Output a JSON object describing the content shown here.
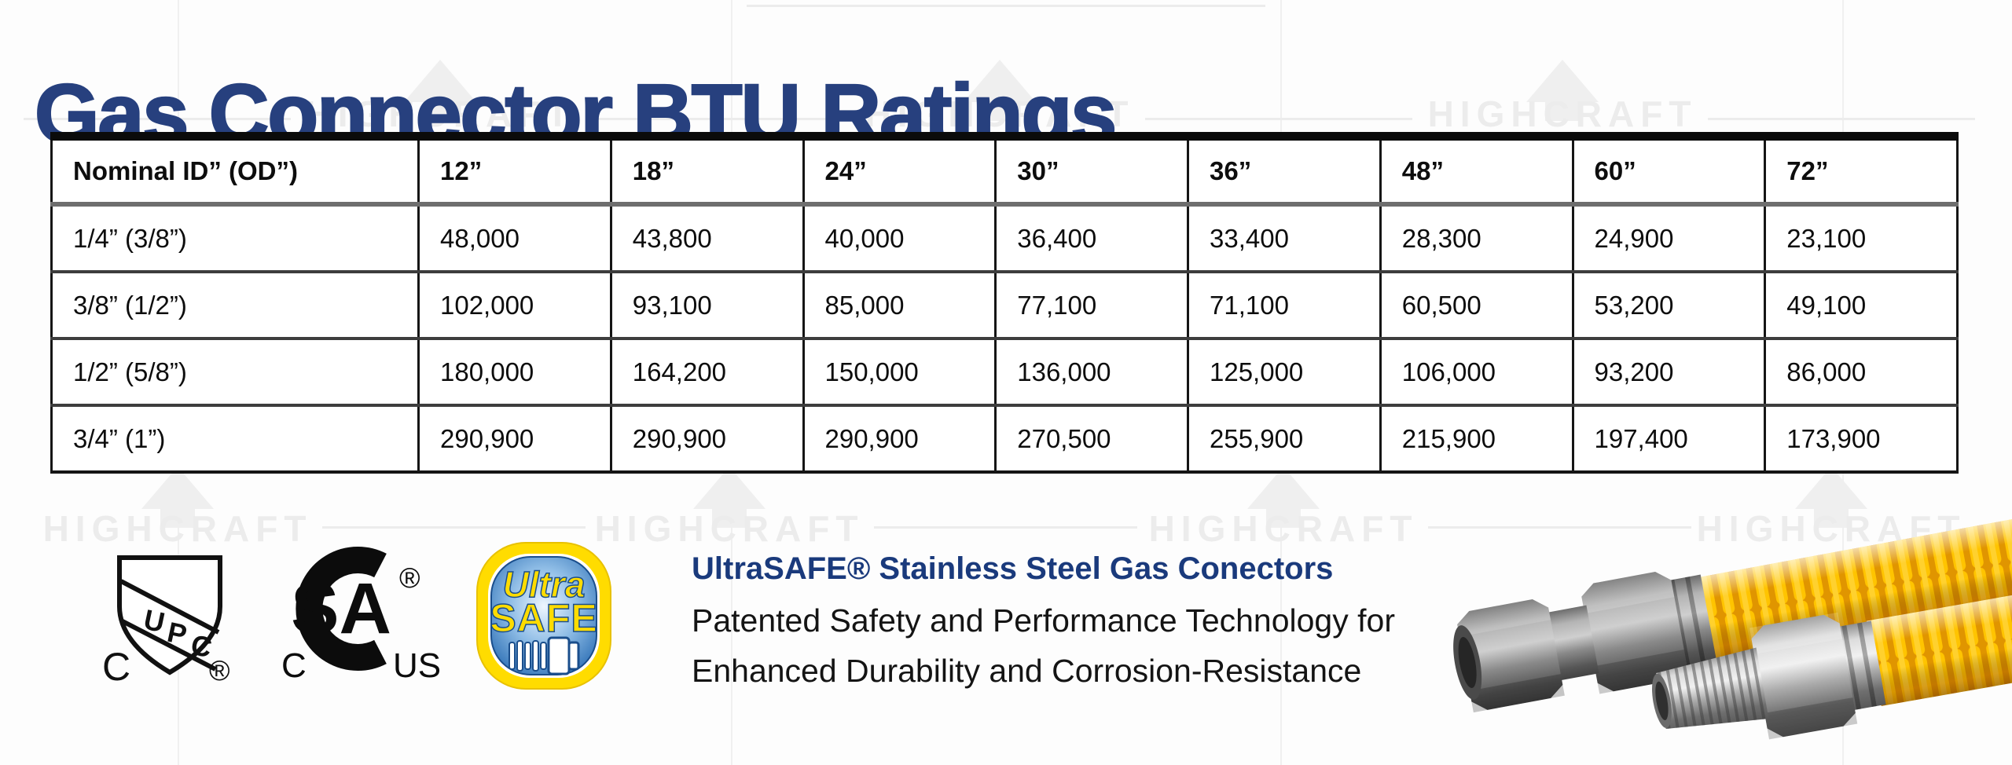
{
  "title": "Gas Connector BTU Ratings",
  "watermark": {
    "text": "HIGHCRAFT"
  },
  "table": {
    "columns": [
      "Nominal ID” (OD”)",
      "12”",
      "18”",
      "24”",
      "30”",
      "36”",
      "48”",
      "60”",
      "72”"
    ],
    "rows": [
      {
        "label": "1/4” (3/8”)",
        "values": [
          "48,000",
          "43,800",
          "40,000",
          "36,400",
          "33,400",
          "28,300",
          "24,900",
          "23,100"
        ]
      },
      {
        "label": "3/8” (1/2”)",
        "values": [
          "102,000",
          "93,100",
          "85,000",
          "77,100",
          "71,100",
          "60,500",
          "53,200",
          "49,100"
        ]
      },
      {
        "label": "1/2” (5/8”)",
        "values": [
          "180,000",
          "164,200",
          "150,000",
          "136,000",
          "125,000",
          "106,000",
          "93,200",
          "86,000"
        ]
      },
      {
        "label": "3/4” (1”)",
        "values": [
          "290,900",
          "290,900",
          "290,900",
          "270,500",
          "255,900",
          "215,900",
          "197,400",
          "173,900"
        ]
      }
    ]
  },
  "certifications": {
    "upc": {
      "letters": [
        "U",
        "P",
        "C"
      ],
      "left_letter": "C",
      "registered": "®"
    },
    "csa": {
      "monogram": "SA",
      "left_letter": "C",
      "right_letters": "US",
      "registered": "®"
    },
    "ultrasafe": {
      "line1": "Ultra",
      "line2": "SAFE"
    }
  },
  "description": {
    "heading": "UltraSAFE® Stainless Steel Gas Conectors",
    "line1": "Patented Safety and Performance Technology for",
    "line2": "Enhanced Durability and Corrosion-Resistance"
  },
  "colors": {
    "title_navy": "#27407E",
    "heading_navy": "#1A3A7C",
    "hose_yellow": "#FFC400",
    "hose_shadow_orange": "#D98F00",
    "ultrasafe_yellow": "#FFDC00",
    "ultrasafe_blue": "#2B72C8",
    "watermark_gray": "#ececec"
  }
}
